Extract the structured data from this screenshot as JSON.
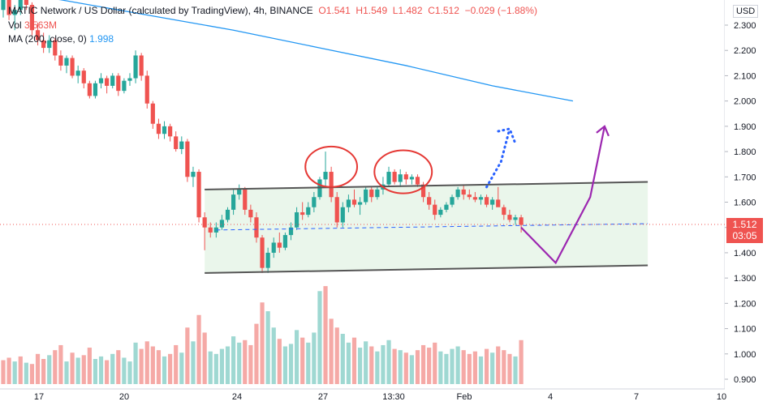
{
  "header": {
    "symbol": "MATIC Network / US Dollar (calculated by TradingView), 4h, BINANCE",
    "o_label": "O",
    "o_val": "1.541",
    "h_label": "H",
    "h_val": "1.549",
    "l_label": "L",
    "l_val": "1.482",
    "c_label": "C",
    "c_val": "1.512",
    "change": "−0.029 (−1.88%)",
    "vol_label": "Vol",
    "vol_val": "3.563M",
    "ma_label": "MA (200, close, 0)",
    "ma_val": "1.998"
  },
  "currency": "USD",
  "last_price": {
    "price": "1.512",
    "countdown": "03:05"
  },
  "colors": {
    "up": "#26a69a",
    "down": "#ef5350",
    "ma": "#2196f3",
    "arrow": "#9c27b0",
    "dots": "#2962ff",
    "channel": "#e8f5e9",
    "circle": "#e53935"
  },
  "chart_data": {
    "type": "candlestick",
    "y_axis": {
      "min": 0.88,
      "max": 2.45,
      "ticks": [
        "2.300",
        "2.200",
        "2.100",
        "2.000",
        "1.900",
        "1.800",
        "1.700",
        "1.600",
        "1.500",
        "1.400",
        "1.300",
        "1.200",
        "1.100",
        "1.000",
        "0.900"
      ]
    },
    "x_ticks": [
      "17",
      "20",
      "24",
      "27",
      "13:30",
      "Feb",
      "4",
      "7",
      "10"
    ],
    "candles": [
      [
        2.36,
        2.42,
        2.33,
        2.4
      ],
      [
        2.4,
        2.41,
        2.32,
        2.34
      ],
      [
        2.34,
        2.38,
        2.28,
        2.36
      ],
      [
        2.36,
        2.43,
        2.34,
        2.42
      ],
      [
        2.42,
        2.44,
        2.36,
        2.38
      ],
      [
        2.38,
        2.39,
        2.26,
        2.28
      ],
      [
        2.28,
        2.31,
        2.22,
        2.24
      ],
      [
        2.24,
        2.27,
        2.19,
        2.21
      ],
      [
        2.21,
        2.26,
        2.19,
        2.24
      ],
      [
        2.24,
        2.25,
        2.16,
        2.18
      ],
      [
        2.18,
        2.2,
        2.12,
        2.14
      ],
      [
        2.14,
        2.18,
        2.11,
        2.17
      ],
      [
        2.17,
        2.18,
        2.09,
        2.1
      ],
      [
        2.1,
        2.14,
        2.07,
        2.12
      ],
      [
        2.12,
        2.13,
        2.05,
        2.07
      ],
      [
        2.07,
        2.08,
        2.01,
        2.02
      ],
      [
        2.02,
        2.08,
        2.01,
        2.07
      ],
      [
        2.07,
        2.11,
        2.05,
        2.09
      ],
      [
        2.09,
        2.1,
        2.03,
        2.06
      ],
      [
        2.06,
        2.11,
        2.05,
        2.1
      ],
      [
        2.1,
        2.11,
        2.02,
        2.04
      ],
      [
        2.04,
        2.09,
        2.03,
        2.08
      ],
      [
        2.08,
        2.11,
        2.06,
        2.09
      ],
      [
        2.09,
        2.2,
        2.07,
        2.18
      ],
      [
        2.18,
        2.19,
        2.08,
        2.1
      ],
      [
        2.1,
        2.12,
        1.97,
        1.99
      ],
      [
        1.99,
        2.0,
        1.89,
        1.91
      ],
      [
        1.91,
        1.93,
        1.85,
        1.87
      ],
      [
        1.87,
        1.92,
        1.85,
        1.9
      ],
      [
        1.9,
        1.91,
        1.84,
        1.86
      ],
      [
        1.86,
        1.88,
        1.8,
        1.81
      ],
      [
        1.81,
        1.86,
        1.79,
        1.84
      ],
      [
        1.84,
        1.85,
        1.68,
        1.7
      ],
      [
        1.7,
        1.74,
        1.66,
        1.72
      ],
      [
        1.72,
        1.73,
        1.52,
        1.54
      ],
      [
        1.54,
        1.56,
        1.41,
        1.5
      ],
      [
        1.5,
        1.52,
        1.46,
        1.48
      ],
      [
        1.48,
        1.52,
        1.46,
        1.5
      ],
      [
        1.5,
        1.55,
        1.49,
        1.53
      ],
      [
        1.53,
        1.58,
        1.52,
        1.57
      ],
      [
        1.57,
        1.65,
        1.55,
        1.63
      ],
      [
        1.63,
        1.67,
        1.61,
        1.65
      ],
      [
        1.65,
        1.66,
        1.55,
        1.57
      ],
      [
        1.57,
        1.59,
        1.52,
        1.54
      ],
      [
        1.54,
        1.56,
        1.44,
        1.46
      ],
      [
        1.46,
        1.47,
        1.32,
        1.34
      ],
      [
        1.34,
        1.42,
        1.32,
        1.4
      ],
      [
        1.4,
        1.46,
        1.38,
        1.44
      ],
      [
        1.44,
        1.48,
        1.4,
        1.42
      ],
      [
        1.42,
        1.48,
        1.41,
        1.47
      ],
      [
        1.47,
        1.52,
        1.45,
        1.5
      ],
      [
        1.5,
        1.58,
        1.49,
        1.56
      ],
      [
        1.56,
        1.6,
        1.53,
        1.55
      ],
      [
        1.55,
        1.6,
        1.54,
        1.58
      ],
      [
        1.58,
        1.64,
        1.56,
        1.62
      ],
      [
        1.62,
        1.7,
        1.61,
        1.69
      ],
      [
        1.69,
        1.8,
        1.66,
        1.72
      ],
      [
        1.72,
        1.74,
        1.6,
        1.62
      ],
      [
        1.62,
        1.64,
        1.5,
        1.52
      ],
      [
        1.52,
        1.6,
        1.5,
        1.58
      ],
      [
        1.58,
        1.63,
        1.56,
        1.61
      ],
      [
        1.61,
        1.65,
        1.58,
        1.59
      ],
      [
        1.59,
        1.62,
        1.55,
        1.6
      ],
      [
        1.6,
        1.66,
        1.59,
        1.65
      ],
      [
        1.65,
        1.66,
        1.6,
        1.62
      ],
      [
        1.62,
        1.66,
        1.61,
        1.65
      ],
      [
        1.65,
        1.7,
        1.63,
        1.67
      ],
      [
        1.67,
        1.74,
        1.66,
        1.72
      ],
      [
        1.72,
        1.73,
        1.67,
        1.68
      ],
      [
        1.68,
        1.73,
        1.66,
        1.71
      ],
      [
        1.71,
        1.72,
        1.67,
        1.69
      ],
      [
        1.69,
        1.71,
        1.67,
        1.7
      ],
      [
        1.7,
        1.71,
        1.66,
        1.67
      ],
      [
        1.67,
        1.68,
        1.6,
        1.62
      ],
      [
        1.62,
        1.64,
        1.57,
        1.59
      ],
      [
        1.59,
        1.61,
        1.53,
        1.55
      ],
      [
        1.55,
        1.58,
        1.54,
        1.57
      ],
      [
        1.57,
        1.6,
        1.56,
        1.59
      ],
      [
        1.59,
        1.63,
        1.58,
        1.62
      ],
      [
        1.62,
        1.66,
        1.61,
        1.65
      ],
      [
        1.65,
        1.67,
        1.61,
        1.63
      ],
      [
        1.63,
        1.65,
        1.61,
        1.62
      ],
      [
        1.62,
        1.64,
        1.6,
        1.61
      ],
      [
        1.61,
        1.63,
        1.59,
        1.62
      ],
      [
        1.62,
        1.63,
        1.58,
        1.59
      ],
      [
        1.59,
        1.62,
        1.57,
        1.61
      ],
      [
        1.61,
        1.66,
        1.59,
        1.58
      ],
      [
        1.58,
        1.59,
        1.53,
        1.55
      ],
      [
        1.55,
        1.57,
        1.52,
        1.53
      ],
      [
        1.53,
        1.55,
        1.51,
        1.54
      ],
      [
        1.54,
        1.55,
        1.48,
        1.51
      ]
    ],
    "volumes": [
      [
        0.19,
        "d"
      ],
      [
        0.21,
        "d"
      ],
      [
        0.18,
        "u"
      ],
      [
        0.22,
        "d"
      ],
      [
        0.17,
        "u"
      ],
      [
        0.16,
        "d"
      ],
      [
        0.24,
        "d"
      ],
      [
        0.2,
        "d"
      ],
      [
        0.23,
        "u"
      ],
      [
        0.27,
        "d"
      ],
      [
        0.31,
        "d"
      ],
      [
        0.18,
        "u"
      ],
      [
        0.25,
        "d"
      ],
      [
        0.21,
        "u"
      ],
      [
        0.23,
        "d"
      ],
      [
        0.29,
        "d"
      ],
      [
        0.2,
        "u"
      ],
      [
        0.22,
        "u"
      ],
      [
        0.19,
        "d"
      ],
      [
        0.24,
        "u"
      ],
      [
        0.27,
        "d"
      ],
      [
        0.21,
        "u"
      ],
      [
        0.18,
        "u"
      ],
      [
        0.33,
        "u"
      ],
      [
        0.28,
        "d"
      ],
      [
        0.34,
        "d"
      ],
      [
        0.3,
        "d"
      ],
      [
        0.27,
        "d"
      ],
      [
        0.22,
        "u"
      ],
      [
        0.24,
        "d"
      ],
      [
        0.31,
        "d"
      ],
      [
        0.25,
        "u"
      ],
      [
        0.45,
        "d"
      ],
      [
        0.34,
        "u"
      ],
      [
        0.55,
        "d"
      ],
      [
        0.41,
        "d"
      ],
      [
        0.26,
        "u"
      ],
      [
        0.24,
        "u"
      ],
      [
        0.28,
        "u"
      ],
      [
        0.3,
        "u"
      ],
      [
        0.38,
        "u"
      ],
      [
        0.33,
        "u"
      ],
      [
        0.35,
        "d"
      ],
      [
        0.31,
        "d"
      ],
      [
        0.48,
        "d"
      ],
      [
        0.65,
        "d"
      ],
      [
        0.58,
        "u"
      ],
      [
        0.45,
        "u"
      ],
      [
        0.36,
        "d"
      ],
      [
        0.3,
        "u"
      ],
      [
        0.32,
        "u"
      ],
      [
        0.43,
        "u"
      ],
      [
        0.37,
        "d"
      ],
      [
        0.33,
        "u"
      ],
      [
        0.41,
        "u"
      ],
      [
        0.74,
        "u"
      ],
      [
        0.78,
        "d"
      ],
      [
        0.52,
        "d"
      ],
      [
        0.45,
        "d"
      ],
      [
        0.4,
        "u"
      ],
      [
        0.33,
        "u"
      ],
      [
        0.37,
        "d"
      ],
      [
        0.29,
        "u"
      ],
      [
        0.34,
        "u"
      ],
      [
        0.3,
        "d"
      ],
      [
        0.26,
        "u"
      ],
      [
        0.31,
        "u"
      ],
      [
        0.35,
        "u"
      ],
      [
        0.28,
        "d"
      ],
      [
        0.27,
        "u"
      ],
      [
        0.25,
        "d"
      ],
      [
        0.23,
        "u"
      ],
      [
        0.27,
        "d"
      ],
      [
        0.31,
        "d"
      ],
      [
        0.29,
        "d"
      ],
      [
        0.33,
        "d"
      ],
      [
        0.26,
        "u"
      ],
      [
        0.24,
        "u"
      ],
      [
        0.28,
        "u"
      ],
      [
        0.3,
        "u"
      ],
      [
        0.27,
        "d"
      ],
      [
        0.24,
        "d"
      ],
      [
        0.26,
        "d"
      ],
      [
        0.22,
        "u"
      ],
      [
        0.28,
        "d"
      ],
      [
        0.25,
        "u"
      ],
      [
        0.3,
        "d"
      ],
      [
        0.27,
        "d"
      ],
      [
        0.24,
        "d"
      ],
      [
        0.22,
        "u"
      ],
      [
        0.35,
        "d"
      ]
    ],
    "ma200": [
      [
        -1,
        2.44
      ],
      [
        10,
        2.4
      ],
      [
        25,
        2.34
      ],
      [
        40,
        2.28
      ],
      [
        55,
        2.21
      ],
      [
        70,
        2.14
      ],
      [
        85,
        2.06
      ],
      [
        99,
        2.0
      ]
    ],
    "channel": {
      "top": [
        [
          35,
          1.65
        ],
        [
          112,
          1.68
        ]
      ],
      "bottom": [
        [
          35,
          1.32
        ],
        [
          112,
          1.35
        ]
      ]
    },
    "circles": [
      {
        "cx": 57,
        "cy": 1.74,
        "rx": 4.5,
        "ry": 0.08
      },
      {
        "cx": 69.5,
        "cy": 1.72,
        "rx": 5,
        "ry": 0.085
      }
    ],
    "dashed_line": [
      [
        37,
        1.49
      ],
      [
        112,
        1.515
      ]
    ],
    "blue_dotted_arrow": [
      [
        84,
        1.66
      ],
      [
        86.5,
        1.76
      ],
      [
        88,
        1.89
      ]
    ],
    "purple_arrow": [
      [
        90,
        1.5
      ],
      [
        96,
        1.36
      ],
      [
        102,
        1.62
      ],
      [
        104.5,
        1.9
      ]
    ]
  }
}
